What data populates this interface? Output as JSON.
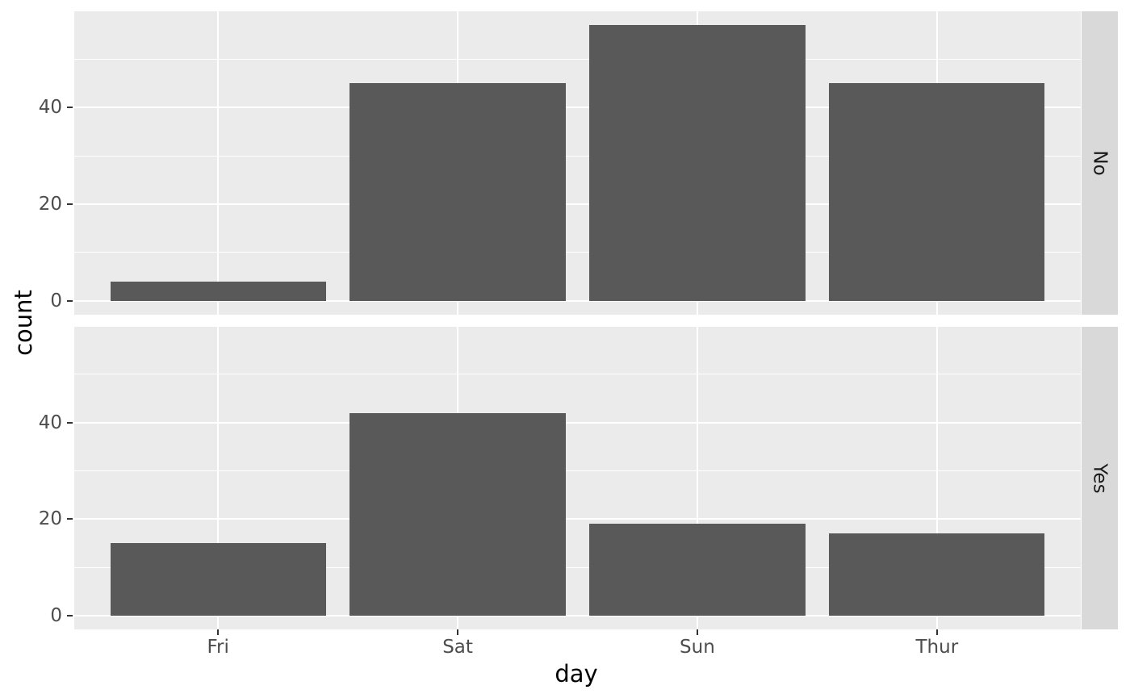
{
  "chart_data": {
    "type": "bar",
    "categories": [
      "Fri",
      "Sat",
      "Sun",
      "Thur"
    ],
    "facet_variable_values": [
      "No",
      "Yes"
    ],
    "series": [
      {
        "name": "No",
        "values": [
          4,
          45,
          57,
          45
        ]
      },
      {
        "name": "Yes",
        "values": [
          15,
          42,
          19,
          17
        ]
      }
    ],
    "xlabel": "day",
    "ylabel": "count",
    "ylim": [
      -2.85,
      59.85
    ],
    "yticks": [
      0,
      20,
      40
    ],
    "yminor": [
      10,
      30,
      50
    ],
    "grid": "on",
    "legend_position": "none",
    "facet_strip_side": "right",
    "colors": {
      "bar_fill": "#595959",
      "panel_background": "#ebebeb",
      "strip_background": "#d9d9d9",
      "grid_major": "#ffffff",
      "grid_minor": "#ffffff",
      "tick_label": "#4d4d4d",
      "strip_text": "#1a1a1a",
      "axis_title": "#000000",
      "tick_mark": "#333333",
      "figure_background": "#ffffff"
    }
  }
}
